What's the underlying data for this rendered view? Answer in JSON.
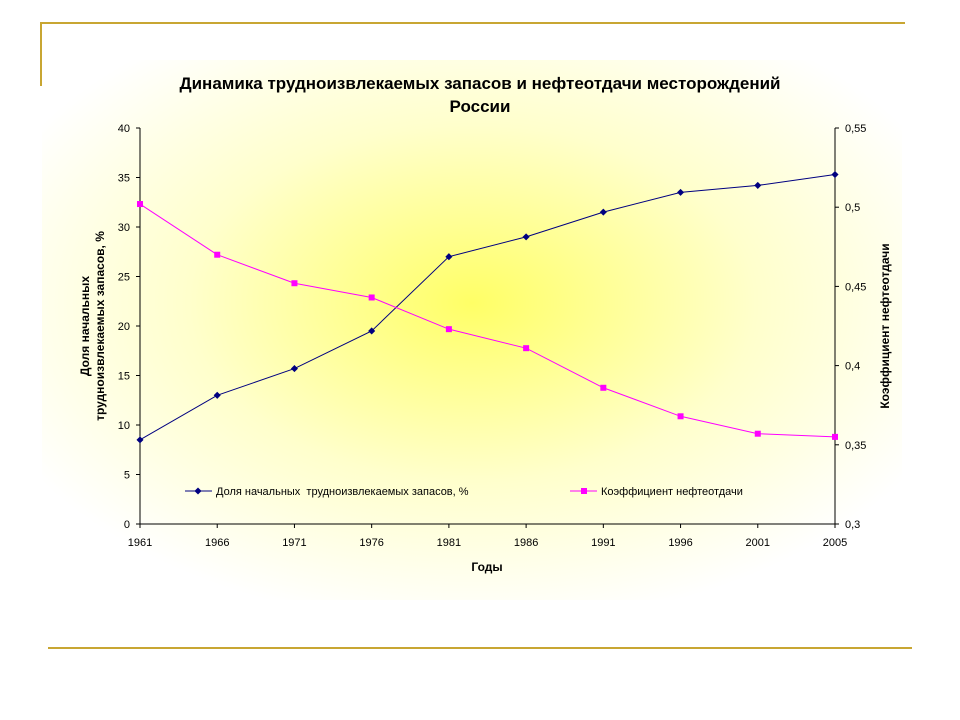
{
  "colors": {
    "series1": "#000080",
    "series2": "#ff00ff",
    "frame": "#c8a632"
  },
  "chart_data": {
    "type": "line",
    "title_lines": [
      "Динамика трудноизвлекаемых запасов и нефтеотдачи месторождений",
      "России"
    ],
    "xlabel": "Годы",
    "ylabel_lines": [
      "Доля начальных",
      "трудноизвлекаемых запасов, %"
    ],
    "y2label": "Коэффициент нефтеотдачи",
    "x": [
      "1961",
      "1966",
      "1971",
      "1976",
      "1981",
      "1986",
      "1991",
      "1996",
      "2001",
      "2005"
    ],
    "ylim": [
      0,
      40
    ],
    "yticks": [
      "0",
      "5",
      "10",
      "15",
      "20",
      "25",
      "30",
      "35",
      "40"
    ],
    "y2lim": [
      0.3,
      0.55
    ],
    "y2ticks": [
      "0,3",
      "0,35",
      "0,4",
      "0,45",
      "0,5",
      "0,55"
    ],
    "legend_position": "bottom-inside",
    "series": [
      {
        "name": "Доля начальных  трудноизвлекаемых запасов, %",
        "axis": "left",
        "marker": "diamond",
        "values": [
          8.5,
          13.0,
          15.7,
          19.5,
          27.0,
          29.0,
          31.5,
          33.5,
          34.2,
          35.3
        ]
      },
      {
        "name": "Коэффициент нефтеотдачи",
        "axis": "right",
        "marker": "square",
        "values": [
          0.502,
          0.47,
          0.452,
          0.443,
          0.423,
          0.411,
          0.386,
          0.368,
          0.357,
          0.355
        ]
      }
    ]
  }
}
